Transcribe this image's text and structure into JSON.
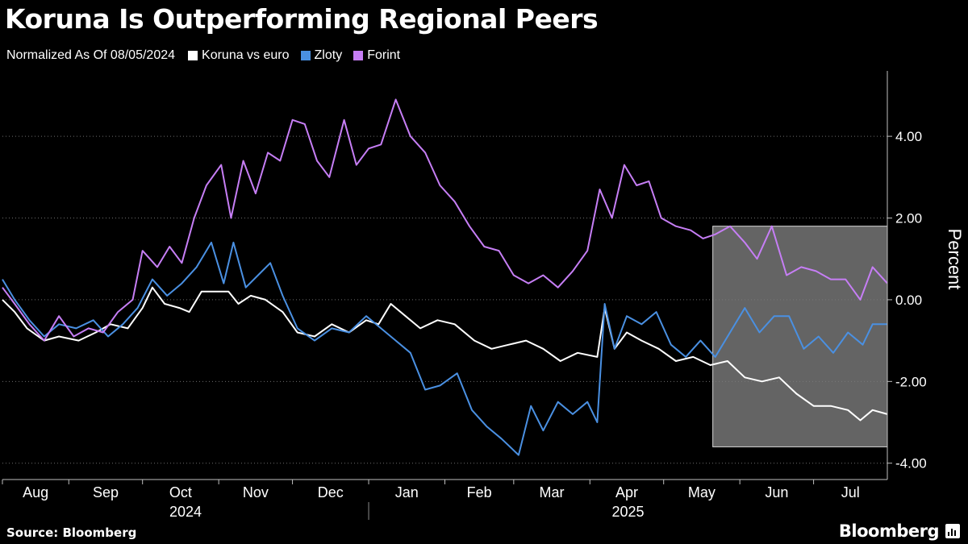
{
  "title": "Koruna Is Outperforming Regional Peers",
  "subtitle": "Normalized As Of 08/05/2024",
  "source": "Source: Bloomberg",
  "brand": "Bloomberg",
  "brand_logo_icon": "bloomberg-terminal-icon",
  "chart_data": {
    "type": "line",
    "ylabel": "Percent",
    "ylim": [
      -4.4,
      5.6
    ],
    "yticks": [
      4,
      2,
      0,
      -2,
      -4
    ],
    "ytick_labels": [
      "4.00",
      "2.00",
      "0.00",
      "-2.00",
      "-4.00"
    ],
    "y_axis_position": "right",
    "grid": true,
    "legend": "top-left",
    "x_start": "2024-08-05",
    "x_end": "2025-07-31",
    "months": [
      {
        "label": "Aug",
        "start": "2024-08-01",
        "end": "2024-09-01"
      },
      {
        "label": "Sep",
        "start": "2024-09-01",
        "end": "2024-10-01"
      },
      {
        "label": "Oct",
        "start": "2024-10-01",
        "end": "2024-11-01"
      },
      {
        "label": "Nov",
        "start": "2024-11-01",
        "end": "2024-12-01"
      },
      {
        "label": "Dec",
        "start": "2024-12-01",
        "end": "2025-01-01"
      },
      {
        "label": "Jan",
        "start": "2025-01-01",
        "end": "2025-02-01"
      },
      {
        "label": "Feb",
        "start": "2025-02-01",
        "end": "2025-03-01"
      },
      {
        "label": "Mar",
        "start": "2025-03-01",
        "end": "2025-04-01"
      },
      {
        "label": "Apr",
        "start": "2025-04-01",
        "end": "2025-05-01"
      },
      {
        "label": "May",
        "start": "2025-05-01",
        "end": "2025-06-01"
      },
      {
        "label": "Jun",
        "start": "2025-06-01",
        "end": "2025-07-01"
      },
      {
        "label": "Jul",
        "start": "2025-07-01",
        "end": "2025-08-01"
      }
    ],
    "years": [
      {
        "label": "2024",
        "start": "2024-08-05",
        "end": "2025-01-01"
      },
      {
        "label": "2025",
        "start": "2025-01-01",
        "end": "2025-07-31"
      }
    ],
    "highlight": {
      "x_start": "2025-05-21",
      "x_end": "2025-07-31",
      "y_min": -3.6,
      "y_max": 1.8
    },
    "series": [
      {
        "name": "Koruna vs euro",
        "color": "#ffffff",
        "points": [
          [
            "2024-08-05",
            0.0
          ],
          [
            "2024-08-10",
            -0.3
          ],
          [
            "2024-08-15",
            -0.7
          ],
          [
            "2024-08-22",
            -1.0
          ],
          [
            "2024-08-28",
            -0.9
          ],
          [
            "2024-09-05",
            -1.0
          ],
          [
            "2024-09-12",
            -0.8
          ],
          [
            "2024-09-18",
            -0.6
          ],
          [
            "2024-09-25",
            -0.7
          ],
          [
            "2024-10-01",
            -0.2
          ],
          [
            "2024-10-05",
            0.3
          ],
          [
            "2024-10-10",
            -0.1
          ],
          [
            "2024-10-16",
            -0.2
          ],
          [
            "2024-10-20",
            -0.3
          ],
          [
            "2024-10-25",
            0.2
          ],
          [
            "2024-10-30",
            0.2
          ],
          [
            "2024-11-05",
            0.2
          ],
          [
            "2024-11-09",
            -0.1
          ],
          [
            "2024-11-14",
            0.1
          ],
          [
            "2024-11-20",
            0.0
          ],
          [
            "2024-11-27",
            -0.3
          ],
          [
            "2024-12-03",
            -0.8
          ],
          [
            "2024-12-10",
            -0.9
          ],
          [
            "2024-12-17",
            -0.6
          ],
          [
            "2024-12-24",
            -0.8
          ],
          [
            "2024-12-31",
            -0.5
          ],
          [
            "2025-01-05",
            -0.6
          ],
          [
            "2025-01-10",
            -0.1
          ],
          [
            "2025-01-16",
            -0.4
          ],
          [
            "2025-01-22",
            -0.7
          ],
          [
            "2025-01-29",
            -0.5
          ],
          [
            "2025-02-05",
            -0.6
          ],
          [
            "2025-02-13",
            -1.0
          ],
          [
            "2025-02-20",
            -1.2
          ],
          [
            "2025-02-27",
            -1.1
          ],
          [
            "2025-03-06",
            -1.0
          ],
          [
            "2025-03-13",
            -1.2
          ],
          [
            "2025-03-20",
            -1.5
          ],
          [
            "2025-03-27",
            -1.3
          ],
          [
            "2025-04-04",
            -1.4
          ],
          [
            "2025-04-07",
            -0.2
          ],
          [
            "2025-04-11",
            -1.2
          ],
          [
            "2025-04-16",
            -0.8
          ],
          [
            "2025-04-22",
            -1.0
          ],
          [
            "2025-04-29",
            -1.2
          ],
          [
            "2025-05-06",
            -1.5
          ],
          [
            "2025-05-13",
            -1.4
          ],
          [
            "2025-05-20",
            -1.6
          ],
          [
            "2025-05-27",
            -1.5
          ],
          [
            "2025-06-03",
            -1.9
          ],
          [
            "2025-06-10",
            -2.0
          ],
          [
            "2025-06-17",
            -1.9
          ],
          [
            "2025-06-24",
            -2.3
          ],
          [
            "2025-07-01",
            -2.6
          ],
          [
            "2025-07-08",
            -2.6
          ],
          [
            "2025-07-15",
            -2.7
          ],
          [
            "2025-07-20",
            -2.95
          ],
          [
            "2025-07-25",
            -2.7
          ],
          [
            "2025-07-31",
            -2.8
          ]
        ]
      },
      {
        "name": "Zloty",
        "color": "#4a90e2",
        "points": [
          [
            "2024-08-05",
            0.5
          ],
          [
            "2024-08-10",
            0.0
          ],
          [
            "2024-08-16",
            -0.5
          ],
          [
            "2024-08-22",
            -0.9
          ],
          [
            "2024-08-28",
            -0.6
          ],
          [
            "2024-09-04",
            -0.7
          ],
          [
            "2024-09-11",
            -0.5
          ],
          [
            "2024-09-17",
            -0.9
          ],
          [
            "2024-09-23",
            -0.6
          ],
          [
            "2024-09-29",
            -0.2
          ],
          [
            "2024-10-05",
            0.5
          ],
          [
            "2024-10-11",
            0.1
          ],
          [
            "2024-10-17",
            0.4
          ],
          [
            "2024-10-23",
            0.8
          ],
          [
            "2024-10-29",
            1.4
          ],
          [
            "2024-11-03",
            0.4
          ],
          [
            "2024-11-07",
            1.4
          ],
          [
            "2024-11-12",
            0.3
          ],
          [
            "2024-11-17",
            0.6
          ],
          [
            "2024-11-22",
            0.9
          ],
          [
            "2024-11-27",
            0.1
          ],
          [
            "2024-12-03",
            -0.7
          ],
          [
            "2024-12-10",
            -1.0
          ],
          [
            "2024-12-17",
            -0.7
          ],
          [
            "2024-12-24",
            -0.8
          ],
          [
            "2024-12-31",
            -0.4
          ],
          [
            "2025-01-06",
            -0.7
          ],
          [
            "2025-01-12",
            -1.0
          ],
          [
            "2025-01-18",
            -1.3
          ],
          [
            "2025-01-24",
            -2.2
          ],
          [
            "2025-01-30",
            -2.1
          ],
          [
            "2025-02-06",
            -1.8
          ],
          [
            "2025-02-12",
            -2.7
          ],
          [
            "2025-02-18",
            -3.1
          ],
          [
            "2025-02-24",
            -3.4
          ],
          [
            "2025-03-03",
            -3.8
          ],
          [
            "2025-03-08",
            -2.6
          ],
          [
            "2025-03-13",
            -3.2
          ],
          [
            "2025-03-19",
            -2.5
          ],
          [
            "2025-03-25",
            -2.8
          ],
          [
            "2025-03-31",
            -2.5
          ],
          [
            "2025-04-04",
            -3.0
          ],
          [
            "2025-04-07",
            -0.1
          ],
          [
            "2025-04-11",
            -1.2
          ],
          [
            "2025-04-16",
            -0.4
          ],
          [
            "2025-04-22",
            -0.6
          ],
          [
            "2025-04-28",
            -0.3
          ],
          [
            "2025-05-04",
            -1.1
          ],
          [
            "2025-05-10",
            -1.4
          ],
          [
            "2025-05-16",
            -1.0
          ],
          [
            "2025-05-22",
            -1.4
          ],
          [
            "2025-05-28",
            -0.8
          ],
          [
            "2025-06-03",
            -0.2
          ],
          [
            "2025-06-09",
            -0.8
          ],
          [
            "2025-06-15",
            -0.4
          ],
          [
            "2025-06-21",
            -0.4
          ],
          [
            "2025-06-27",
            -1.2
          ],
          [
            "2025-07-03",
            -0.9
          ],
          [
            "2025-07-09",
            -1.3
          ],
          [
            "2025-07-15",
            -0.8
          ],
          [
            "2025-07-21",
            -1.1
          ],
          [
            "2025-07-25",
            -0.6
          ],
          [
            "2025-07-31",
            -0.6
          ]
        ]
      },
      {
        "name": "Forint",
        "color": "#c67ef5",
        "points": [
          [
            "2024-08-05",
            0.3
          ],
          [
            "2024-08-10",
            -0.1
          ],
          [
            "2024-08-16",
            -0.6
          ],
          [
            "2024-08-22",
            -1.0
          ],
          [
            "2024-08-28",
            -0.4
          ],
          [
            "2024-09-03",
            -0.9
          ],
          [
            "2024-09-09",
            -0.7
          ],
          [
            "2024-09-15",
            -0.8
          ],
          [
            "2024-09-21",
            -0.3
          ],
          [
            "2024-09-27",
            0.0
          ],
          [
            "2024-10-01",
            1.2
          ],
          [
            "2024-10-07",
            0.8
          ],
          [
            "2024-10-12",
            1.3
          ],
          [
            "2024-10-17",
            0.9
          ],
          [
            "2024-10-22",
            2.0
          ],
          [
            "2024-10-27",
            2.8
          ],
          [
            "2024-11-02",
            3.3
          ],
          [
            "2024-11-06",
            2.0
          ],
          [
            "2024-11-11",
            3.4
          ],
          [
            "2024-11-16",
            2.6
          ],
          [
            "2024-11-21",
            3.6
          ],
          [
            "2024-11-26",
            3.4
          ],
          [
            "2024-12-01",
            4.4
          ],
          [
            "2024-12-06",
            4.3
          ],
          [
            "2024-12-11",
            3.4
          ],
          [
            "2024-12-16",
            3.0
          ],
          [
            "2024-12-22",
            4.4
          ],
          [
            "2024-12-27",
            3.3
          ],
          [
            "2025-01-01",
            3.7
          ],
          [
            "2025-01-06",
            3.8
          ],
          [
            "2025-01-12",
            4.9
          ],
          [
            "2025-01-18",
            4.0
          ],
          [
            "2025-01-24",
            3.6
          ],
          [
            "2025-01-30",
            2.8
          ],
          [
            "2025-02-05",
            2.4
          ],
          [
            "2025-02-11",
            1.8
          ],
          [
            "2025-02-17",
            1.3
          ],
          [
            "2025-02-23",
            1.2
          ],
          [
            "2025-03-01",
            0.6
          ],
          [
            "2025-03-07",
            0.4
          ],
          [
            "2025-03-13",
            0.6
          ],
          [
            "2025-03-19",
            0.3
          ],
          [
            "2025-03-25",
            0.7
          ],
          [
            "2025-03-31",
            1.2
          ],
          [
            "2025-04-05",
            2.7
          ],
          [
            "2025-04-10",
            2.0
          ],
          [
            "2025-04-15",
            3.3
          ],
          [
            "2025-04-20",
            2.8
          ],
          [
            "2025-04-25",
            2.9
          ],
          [
            "2025-04-30",
            2.0
          ],
          [
            "2025-05-06",
            1.8
          ],
          [
            "2025-05-12",
            1.7
          ],
          [
            "2025-05-17",
            1.5
          ],
          [
            "2025-05-22",
            1.6
          ],
          [
            "2025-05-28",
            1.8
          ],
          [
            "2025-06-03",
            1.4
          ],
          [
            "2025-06-08",
            1.0
          ],
          [
            "2025-06-14",
            1.8
          ],
          [
            "2025-06-20",
            0.6
          ],
          [
            "2025-06-26",
            0.8
          ],
          [
            "2025-07-02",
            0.7
          ],
          [
            "2025-07-08",
            0.5
          ],
          [
            "2025-07-14",
            0.5
          ],
          [
            "2025-07-20",
            0.0
          ],
          [
            "2025-07-25",
            0.8
          ],
          [
            "2025-07-31",
            0.4
          ]
        ]
      }
    ]
  }
}
